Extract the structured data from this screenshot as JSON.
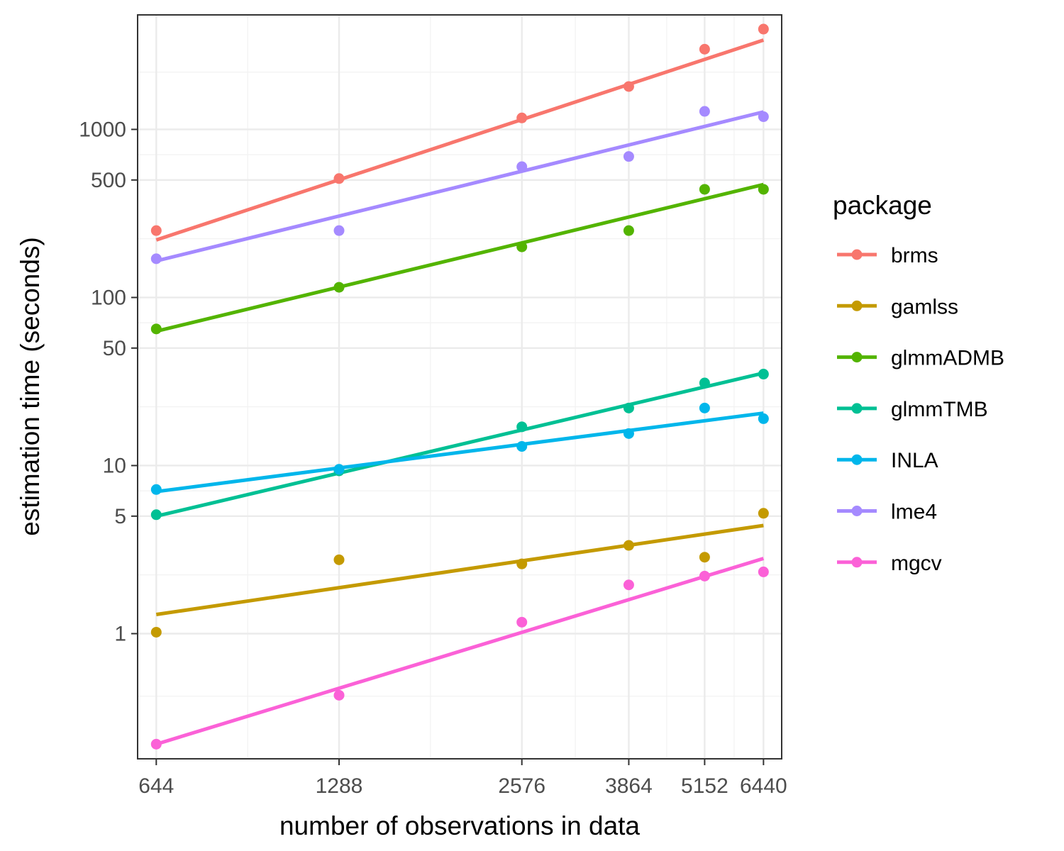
{
  "chart_data": {
    "type": "scatter",
    "xlabel": "number of observations in data",
    "ylabel": "estimation time (seconds)",
    "x_scale": "log",
    "y_scale": "log",
    "xlim": [
      600,
      6900
    ],
    "ylim": [
      0.18,
      4800
    ],
    "x_ticks": [
      644,
      1288,
      2576,
      3864,
      5152,
      6440
    ],
    "x_tick_labels": [
      "644",
      "1288",
      "2576",
      "3864",
      "5152",
      "6440"
    ],
    "y_ticks": [
      1,
      5,
      10,
      50,
      100,
      500,
      1000
    ],
    "y_tick_labels": [
      "1",
      "5",
      "10",
      "50",
      "100",
      "500",
      "1000"
    ],
    "grid": true,
    "legend": {
      "title": "package",
      "position": "right"
    },
    "x": [
      644,
      1288,
      2576,
      3864,
      5152,
      6440
    ],
    "series": [
      {
        "name": "brms",
        "color": "#F8766D",
        "values": [
          250,
          510,
          1170,
          1800,
          3000,
          3950
        ],
        "fit": [
          220,
          3400
        ]
      },
      {
        "name": "gamlss",
        "color": "#C49A00",
        "values": [
          1.02,
          2.75,
          2.6,
          3.35,
          2.85,
          5.2
        ],
        "fit": [
          1.3,
          4.4
        ]
      },
      {
        "name": "glmmADMB",
        "color": "#53B400",
        "values": [
          65,
          115,
          200,
          250,
          440,
          440
        ],
        "fit": [
          63,
          470
        ]
      },
      {
        "name": "glmmTMB",
        "color": "#00C094",
        "values": [
          5.1,
          9.3,
          17,
          22,
          31,
          35
        ],
        "fit": [
          5.0,
          35.5
        ]
      },
      {
        "name": "INLA",
        "color": "#00B6EB",
        "values": [
          7.2,
          9.5,
          13,
          15.5,
          22,
          19
        ],
        "fit": [
          7.0,
          20.5
        ]
      },
      {
        "name": "lme4",
        "color": "#A58AFF",
        "values": [
          170,
          250,
          600,
          690,
          1280,
          1190
        ],
        "fit": [
          165,
          1270
        ]
      },
      {
        "name": "mgcv",
        "color": "#FB61D7",
        "values": [
          0.22,
          0.43,
          1.17,
          1.95,
          2.2,
          2.33
        ],
        "fit": [
          0.22,
          2.8
        ]
      }
    ]
  }
}
